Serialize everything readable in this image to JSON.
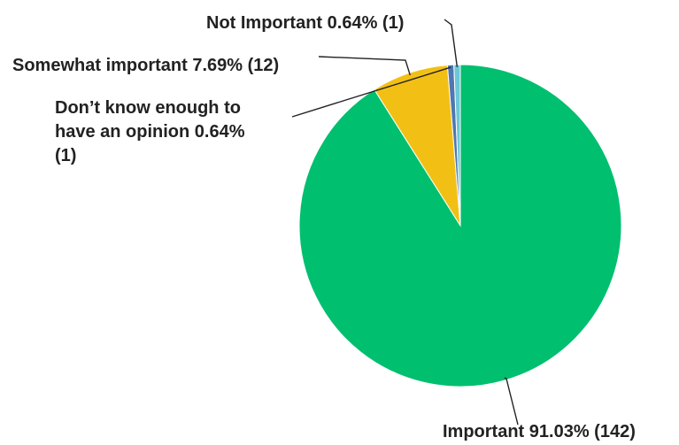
{
  "chart_data": {
    "type": "pie",
    "title": "",
    "slices": [
      {
        "label": "Important",
        "percent": 91.03,
        "count": 142,
        "text_lines": [
          "Important 91.03% (142)"
        ],
        "color": "#00bf6f"
      },
      {
        "label": "Don't know enough to have an opinion",
        "percent": 0.64,
        "count": 1,
        "text_lines": [
          "Don’t know enough to",
          "have an opinion 0.64%",
          "(1)"
        ],
        "color": "#4f77b0"
      },
      {
        "label": "Somewhat important",
        "percent": 7.69,
        "count": 12,
        "text_lines": [
          "Somewhat important 7.69% (12)"
        ],
        "color": "#f2c014"
      },
      {
        "label": "Not Important",
        "percent": 0.64,
        "count": 1,
        "text_lines": [
          "Not Important 0.64% (1)"
        ],
        "color": "#6cc7d6"
      }
    ]
  }
}
